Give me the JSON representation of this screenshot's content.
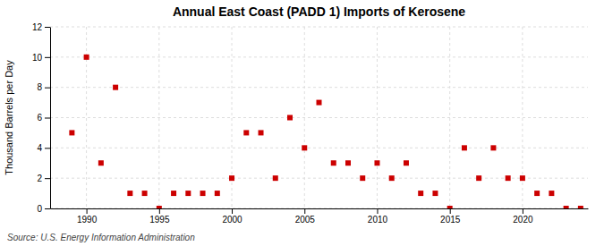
{
  "chart_data": {
    "type": "scatter",
    "title": "Annual East Coast (PADD 1) Imports of Kerosene",
    "ylabel": "Thousand Barrels per Day",
    "annotations": [
      "Source: U.S. Energy Information Administration"
    ],
    "x": [
      1989,
      1990,
      1991,
      1992,
      1993,
      1994,
      1995,
      1996,
      1997,
      1998,
      1999,
      2000,
      2001,
      2002,
      2003,
      2004,
      2005,
      2006,
      2007,
      2008,
      2009,
      2010,
      2011,
      2012,
      2013,
      2014,
      2015,
      2016,
      2017,
      2018,
      2019,
      2020,
      2021,
      2022,
      2023,
      2024
    ],
    "values": [
      5,
      10,
      3,
      8,
      1,
      1,
      0,
      1,
      1,
      1,
      1,
      2,
      5,
      5,
      2,
      6,
      4,
      7,
      3,
      3,
      2,
      3,
      2,
      3,
      1,
      1,
      0,
      4,
      2,
      4,
      2,
      2,
      1,
      1,
      0,
      0
    ],
    "color": "#cc0000",
    "marker": "square",
    "xlim": [
      1987.5,
      2024.5
    ],
    "ylim": [
      0,
      12
    ],
    "xticks": [
      1990,
      1995,
      2000,
      2005,
      2010,
      2015,
      2020
    ],
    "yticks": [
      0,
      2,
      4,
      6,
      8,
      10,
      12
    ],
    "grid": true
  }
}
